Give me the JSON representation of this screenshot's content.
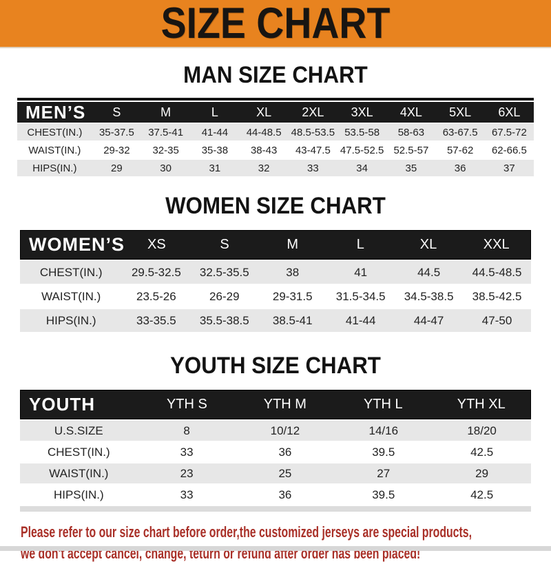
{
  "banner": {
    "title": "SIZE CHART"
  },
  "sections": [
    {
      "id": "men",
      "heading": "MAN SIZE CHART",
      "table": {
        "label": "MEN’S",
        "columns": [
          "S",
          "M",
          "L",
          "XL",
          "2XL",
          "3XL",
          "4XL",
          "5XL",
          "6XL"
        ],
        "rows": [
          {
            "label": "CHEST(IN.)",
            "values": [
              "35-37.5",
              "37.5-41",
              "41-44",
              "44-48.5",
              "48.5-53.5",
              "53.5-58",
              "58-63",
              "63-67.5",
              "67.5-72"
            ]
          },
          {
            "label": "WAIST(IN.)",
            "values": [
              "29-32",
              "32-35",
              "35-38",
              "38-43",
              "43-47.5",
              "47.5-52.5",
              "52.5-57",
              "57-62",
              "62-66.5"
            ]
          },
          {
            "label": "HIPS(IN.)",
            "values": [
              "29",
              "30",
              "31",
              "32",
              "33",
              "34",
              "35",
              "36",
              "37"
            ]
          }
        ]
      }
    },
    {
      "id": "women",
      "heading": "WOMEN SIZE CHART",
      "table": {
        "label": "WOMEN’S",
        "columns": [
          "XS",
          "S",
          "M",
          "L",
          "XL",
          "XXL"
        ],
        "rows": [
          {
            "label": "CHEST(IN.)",
            "values": [
              "29.5-32.5",
              "32.5-35.5",
              "38",
              "41",
              "44.5",
              "44.5-48.5"
            ]
          },
          {
            "label": "WAIST(IN.)",
            "values": [
              "23.5-26",
              "26-29",
              "29-31.5",
              "31.5-34.5",
              "34.5-38.5",
              "38.5-42.5"
            ]
          },
          {
            "label": "HIPS(IN.)",
            "values": [
              "33-35.5",
              "35.5-38.5",
              "38.5-41",
              "41-44",
              "44-47",
              "47-50"
            ]
          }
        ]
      }
    },
    {
      "id": "youth",
      "heading": "YOUTH SIZE CHART",
      "table": {
        "label": "YOUTH",
        "columns": [
          "YTH S",
          "YTH M",
          "YTH L",
          "YTH XL"
        ],
        "rows": [
          {
            "label": "U.S.SIZE",
            "values": [
              "8",
              "10/12",
              "14/16",
              "18/20"
            ]
          },
          {
            "label": "CHEST(IN.)",
            "values": [
              "33",
              "36",
              "39.5",
              "42.5"
            ]
          },
          {
            "label": "WAIST(IN.)",
            "values": [
              "23",
              "25",
              "27",
              "29"
            ]
          },
          {
            "label": "HIPS(IN.)",
            "values": [
              "33",
              "36",
              "39.5",
              "42.5"
            ]
          }
        ]
      }
    }
  ],
  "footer_note": {
    "line1": "Please refer to our size chart before order,the customized jerseys are special products,",
    "line2": "we don't accept cancel, change, teturn or refund after order has been placed!"
  },
  "colors": {
    "banner_bg": "#E8831F",
    "banner_text": "#181512",
    "table_header_bg": "#1b1b1b",
    "table_header_text": "#ffffff",
    "row_alt_bg": "#e7e7e7",
    "note_text": "#A93028"
  }
}
